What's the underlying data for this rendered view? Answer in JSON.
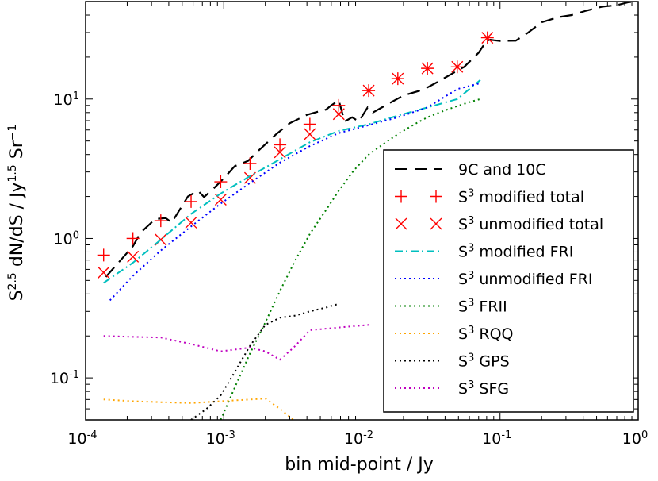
{
  "chart_data": {
    "type": "line",
    "x_scale": "log",
    "y_scale": "log",
    "xlim": [
      0.0001,
      1
    ],
    "ylim": [
      0.05,
      50
    ],
    "xlabel": "bin mid-point / Jy",
    "ylabel": {
      "base": "S",
      "sup1": "2.5",
      "mid": " dN/dS / Jy",
      "sup2": "1.5",
      "tail": " Sr",
      "sup3": "−1"
    },
    "x_ticks": [
      {
        "value": 0.0001,
        "base": "10",
        "exp": "-4"
      },
      {
        "value": 0.001,
        "base": "10",
        "exp": "-3"
      },
      {
        "value": 0.01,
        "base": "10",
        "exp": "-2"
      },
      {
        "value": 0.1,
        "base": "10",
        "exp": "-1"
      },
      {
        "value": 1,
        "base": "10",
        "exp": "0"
      }
    ],
    "y_ticks": [
      {
        "value": 0.1,
        "base": "10",
        "exp": "-1"
      },
      {
        "value": 1,
        "base": "10",
        "exp": "0"
      },
      {
        "value": 10,
        "base": "10",
        "exp": "1"
      }
    ],
    "legend_position": "lower-right",
    "series": [
      {
        "name": "9C and 10C",
        "kind": "line",
        "dash": "16,9",
        "color": "#000000",
        "x": [
          0.00014,
          0.00022,
          0.00025,
          0.00032,
          0.00038,
          0.00042,
          0.00055,
          0.00065,
          0.00072,
          0.00085,
          0.001,
          0.0012,
          0.0015,
          0.0018,
          0.0024,
          0.003,
          0.004,
          0.005,
          0.0055,
          0.006,
          0.0068,
          0.0075,
          0.0085,
          0.0095,
          0.011,
          0.012,
          0.016,
          0.02,
          0.028,
          0.035,
          0.045,
          0.055,
          0.07,
          0.08,
          0.085,
          0.09,
          0.1,
          0.13,
          0.16,
          0.2,
          0.26,
          0.33,
          0.42,
          0.55,
          0.7,
          0.85,
          1.0
        ],
        "y": [
          0.53,
          0.88,
          1.1,
          1.38,
          1.4,
          1.3,
          2.0,
          2.2,
          1.98,
          2.3,
          2.7,
          3.3,
          3.6,
          4.3,
          5.6,
          6.7,
          7.7,
          8.2,
          8.4,
          9.0,
          9.8,
          6.9,
          7.4,
          6.9,
          8.7,
          8.0,
          9.4,
          10.6,
          11.7,
          13.2,
          15.2,
          17.0,
          21.5,
          26.2,
          26.6,
          26.4,
          26.1,
          26.2,
          30.0,
          35.5,
          38.5,
          40.0,
          43.0,
          46.0,
          47.0,
          49.5,
          50.0
        ]
      },
      {
        "name": "S³ modified total",
        "legend_sup": "3",
        "legend_text": " modified total",
        "kind": "plus",
        "color": "#ff0000",
        "x": [
          0.000135,
          0.00022,
          0.00035,
          0.00058,
          0.00095,
          0.00155,
          0.00255,
          0.0042,
          0.0068,
          0.0112,
          0.0182,
          0.0298,
          0.049,
          0.081
        ],
        "y": [
          0.76,
          1.0,
          1.34,
          1.84,
          2.55,
          3.45,
          4.7,
          6.6,
          9.0,
          11.5,
          14.0,
          16.6,
          17.0,
          27.5
        ]
      },
      {
        "name": "S³ unmodified total",
        "legend_sup": "3",
        "legend_text": " unmodified total",
        "kind": "cross",
        "color": "#ff0000",
        "x": [
          0.000135,
          0.00022,
          0.00035,
          0.00058,
          0.00095,
          0.00155,
          0.00255,
          0.0042,
          0.0068,
          0.0112,
          0.0182,
          0.0298,
          0.049,
          0.081
        ],
        "y": [
          0.57,
          0.74,
          0.98,
          1.3,
          1.9,
          2.72,
          4.15,
          5.6,
          7.8,
          11.5,
          14.0,
          16.6,
          17.0,
          27.5
        ]
      },
      {
        "name": "S³ modified FRI",
        "legend_sup": "3",
        "legend_text": " modified FRI",
        "kind": "line",
        "dash": "10,4,2,4",
        "color": "#00bfbf",
        "x": [
          0.000135,
          0.00022,
          0.00035,
          0.00058,
          0.00095,
          0.00155,
          0.00255,
          0.0042,
          0.0068,
          0.0112,
          0.0182,
          0.0298,
          0.049,
          0.072
        ],
        "y": [
          0.48,
          0.67,
          0.98,
          1.5,
          2.1,
          2.8,
          3.7,
          4.9,
          5.9,
          6.6,
          7.6,
          8.7,
          10.0,
          13.7
        ]
      },
      {
        "name": "S³ unmodified FRI",
        "legend_sup": "3",
        "legend_text": " unmodified FRI",
        "kind": "line",
        "dash": "2,4",
        "color": "#0000ff",
        "x": [
          0.00015,
          0.00022,
          0.00035,
          0.00058,
          0.00095,
          0.00155,
          0.00255,
          0.0042,
          0.0068,
          0.0112,
          0.0182,
          0.0298,
          0.049,
          0.072
        ],
        "y": [
          0.36,
          0.54,
          0.82,
          1.22,
          1.78,
          2.5,
          3.5,
          4.6,
          5.7,
          6.5,
          7.4,
          8.7,
          11.8,
          13.0
        ]
      },
      {
        "name": "S³ FRII",
        "legend_sup": "3",
        "legend_text": " FRII",
        "kind": "line",
        "dash": "2,4",
        "color": "#008000",
        "x": [
          0.00095,
          0.0012,
          0.00155,
          0.002,
          0.00255,
          0.0033,
          0.0042,
          0.0055,
          0.0068,
          0.0088,
          0.0112,
          0.0145,
          0.0182,
          0.024,
          0.0298,
          0.04,
          0.049,
          0.06,
          0.072
        ],
        "y": [
          0.05,
          0.085,
          0.15,
          0.25,
          0.42,
          0.7,
          1.08,
          1.6,
          2.2,
          3.1,
          4.0,
          4.8,
          5.6,
          6.6,
          7.4,
          8.3,
          8.9,
          9.5,
          10.0
        ]
      },
      {
        "name": "S³ RQQ",
        "legend_sup": "3",
        "legend_text": " RQQ",
        "kind": "line",
        "dash": "2,4",
        "color": "#ffa500",
        "x": [
          0.000135,
          0.00022,
          0.00035,
          0.00058,
          0.00095,
          0.00155,
          0.002,
          0.00255,
          0.0032
        ],
        "y": [
          0.07,
          0.068,
          0.067,
          0.066,
          0.068,
          0.07,
          0.071,
          0.06,
          0.05
        ]
      },
      {
        "name": "S³ GPS",
        "legend_sup": "3",
        "legend_text": " GPS",
        "kind": "line",
        "dash": "2,4",
        "color": "#000000",
        "x": [
          0.00058,
          0.00075,
          0.00095,
          0.0012,
          0.00155,
          0.002,
          0.00255,
          0.0033,
          0.0042,
          0.0055,
          0.0068
        ],
        "y": [
          0.05,
          0.06,
          0.075,
          0.11,
          0.17,
          0.24,
          0.27,
          0.28,
          0.3,
          0.32,
          0.34
        ]
      },
      {
        "name": "S³ SFG",
        "legend_sup": "3",
        "legend_text": " SFG",
        "kind": "line",
        "dash": "2,4",
        "color": "#bf00bf",
        "x": [
          0.000135,
          0.00022,
          0.00035,
          0.00058,
          0.00095,
          0.00155,
          0.002,
          0.00255,
          0.0032,
          0.0042,
          0.0068,
          0.0112
        ],
        "y": [
          0.2,
          0.197,
          0.195,
          0.175,
          0.155,
          0.165,
          0.155,
          0.135,
          0.165,
          0.22,
          0.23,
          0.24
        ]
      }
    ]
  }
}
